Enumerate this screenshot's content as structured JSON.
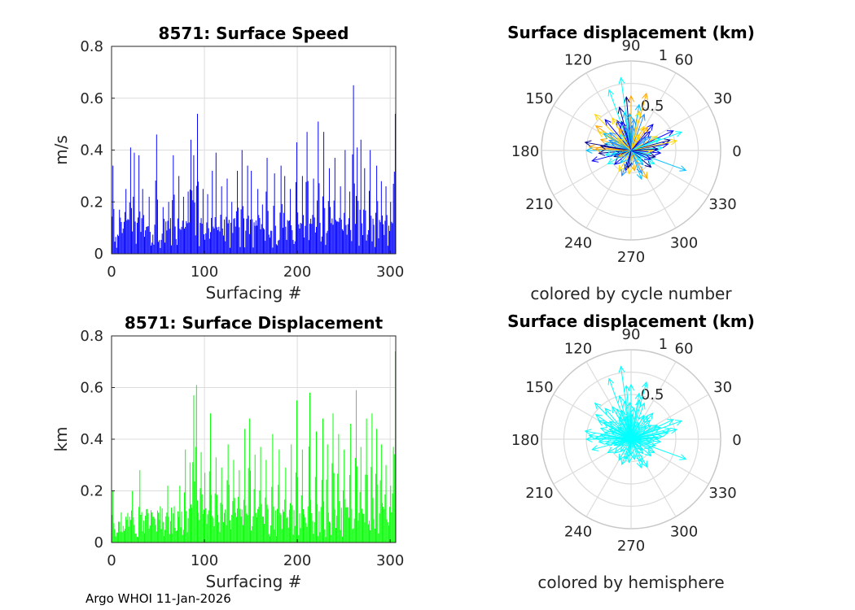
{
  "footer": "Argo WHOI 11-Jan-2026",
  "chart_data": [
    {
      "type": "bar",
      "title": "8571: Surface Speed",
      "xlabel": "Surfacing #",
      "ylabel": "m/s",
      "xlim": [
        0,
        306
      ],
      "ylim": [
        0,
        0.8
      ],
      "xticks": [
        "0",
        "100",
        "200",
        "300"
      ],
      "yticks": [
        "0",
        "0.2",
        "0.4",
        "0.6",
        "0.8"
      ],
      "color": "#0000ff",
      "peaks": [
        [
          1,
          0.34
        ],
        [
          8,
          0.17
        ],
        [
          15,
          0.25
        ],
        [
          20,
          0.41
        ],
        [
          24,
          0.39
        ],
        [
          29,
          0.38
        ],
        [
          33,
          0.25
        ],
        [
          40,
          0.22
        ],
        [
          48,
          0.46
        ],
        [
          55,
          0.18
        ],
        [
          61,
          0.2
        ],
        [
          66,
          0.38
        ],
        [
          72,
          0.3
        ],
        [
          77,
          0.22
        ],
        [
          82,
          0.24
        ],
        [
          85,
          0.44
        ],
        [
          88,
          0.38
        ],
        [
          92,
          0.54
        ],
        [
          98,
          0.25
        ],
        [
          103,
          0.23
        ],
        [
          108,
          0.32
        ],
        [
          112,
          0.39
        ],
        [
          118,
          0.26
        ],
        [
          124,
          0.29
        ],
        [
          129,
          0.2
        ],
        [
          135,
          0.32
        ],
        [
          140,
          0.4
        ],
        [
          146,
          0.34
        ],
        [
          150,
          0.32
        ],
        [
          157,
          0.25
        ],
        [
          162,
          0.19
        ],
        [
          167,
          0.37
        ],
        [
          175,
          0.31
        ],
        [
          182,
          0.34
        ],
        [
          186,
          0.3
        ],
        [
          192,
          0.25
        ],
        [
          199,
          0.43
        ],
        [
          205,
          0.3
        ],
        [
          210,
          0.47
        ],
        [
          217,
          0.29
        ],
        [
          222,
          0.51
        ],
        [
          228,
          0.47
        ],
        [
          234,
          0.33
        ],
        [
          240,
          0.37
        ],
        [
          246,
          0.26
        ],
        [
          251,
          0.4
        ],
        [
          256,
          0.24
        ],
        [
          260,
          0.65
        ],
        [
          264,
          0.41
        ],
        [
          268,
          0.44
        ],
        [
          272,
          0.33
        ],
        [
          278,
          0.4
        ],
        [
          285,
          0.34
        ],
        [
          290,
          0.28
        ],
        [
          295,
          0.26
        ],
        [
          300,
          0.2
        ],
        [
          303,
          0.27
        ],
        [
          305,
          0.54
        ]
      ]
    },
    {
      "type": "bar",
      "title": "8571: Surface Displacement",
      "xlabel": "Surfacing #",
      "ylabel": "km",
      "xlim": [
        0,
        306
      ],
      "ylim": [
        0,
        0.8
      ],
      "xticks": [
        "0",
        "100",
        "200",
        "300"
      ],
      "yticks": [
        "0",
        "0.2",
        "0.4",
        "0.6",
        "0.8"
      ],
      "color": "#00ff00",
      "peaks": [
        [
          1,
          0.2
        ],
        [
          8,
          0.08
        ],
        [
          15,
          0.1
        ],
        [
          22,
          0.2
        ],
        [
          30,
          0.28
        ],
        [
          38,
          0.13
        ],
        [
          45,
          0.1
        ],
        [
          52,
          0.14
        ],
        [
          60,
          0.22
        ],
        [
          67,
          0.14
        ],
        [
          73,
          0.22
        ],
        [
          79,
          0.36
        ],
        [
          84,
          0.31
        ],
        [
          88,
          0.57
        ],
        [
          91,
          0.61
        ],
        [
          96,
          0.35
        ],
        [
          100,
          0.27
        ],
        [
          106,
          0.5
        ],
        [
          112,
          0.33
        ],
        [
          118,
          0.29
        ],
        [
          125,
          0.38
        ],
        [
          131,
          0.32
        ],
        [
          137,
          0.28
        ],
        [
          143,
          0.44
        ],
        [
          148,
          0.48
        ],
        [
          154,
          0.34
        ],
        [
          160,
          0.37
        ],
        [
          166,
          0.32
        ],
        [
          173,
          0.42
        ],
        [
          180,
          0.36
        ],
        [
          187,
          0.29
        ],
        [
          193,
          0.38
        ],
        [
          199,
          0.55
        ],
        [
          205,
          0.36
        ],
        [
          213,
          0.58
        ],
        [
          220,
          0.43
        ],
        [
          227,
          0.48
        ],
        [
          232,
          0.38
        ],
        [
          238,
          0.5
        ],
        [
          244,
          0.42
        ],
        [
          250,
          0.36
        ],
        [
          257,
          0.46
        ],
        [
          263,
          0.59
        ],
        [
          268,
          0.37
        ],
        [
          274,
          0.48
        ],
        [
          280,
          0.5
        ],
        [
          285,
          0.44
        ],
        [
          290,
          0.38
        ],
        [
          295,
          0.3
        ],
        [
          300,
          0.22
        ],
        [
          303,
          0.37
        ],
        [
          305,
          0.74
        ]
      ]
    },
    {
      "type": "polar",
      "title": "Surface displacement (km)",
      "caption": "colored by cycle number",
      "rlim": [
        0,
        1
      ],
      "rticks": [
        "0.5",
        "1"
      ],
      "angle_ticks": [
        "0",
        "30",
        "60",
        "90",
        "120",
        "150",
        "180",
        "210",
        "240",
        "270",
        "300",
        "330"
      ],
      "colormap": [
        "#00008b",
        "#0000ff",
        "#1e90ff",
        "#00bfff",
        "#00ffff",
        "#ffd700",
        "#ffa500"
      ],
      "vectors": [
        [
          15,
          0.45
        ],
        [
          20,
          0.6
        ],
        [
          25,
          0.52
        ],
        [
          28,
          0.33
        ],
        [
          35,
          0.27
        ],
        [
          50,
          0.38
        ],
        [
          62,
          0.3
        ],
        [
          70,
          0.43
        ],
        [
          75,
          0.66
        ],
        [
          80,
          0.52
        ],
        [
          85,
          0.35
        ],
        [
          90,
          0.61
        ],
        [
          92,
          0.41
        ],
        [
          95,
          0.6
        ],
        [
          98,
          0.82
        ],
        [
          100,
          0.43
        ],
        [
          105,
          0.5
        ],
        [
          110,
          0.72
        ],
        [
          115,
          0.37
        ],
        [
          120,
          0.42
        ],
        [
          125,
          0.22
        ],
        [
          130,
          0.45
        ],
        [
          135,
          0.57
        ],
        [
          140,
          0.31
        ],
        [
          145,
          0.48
        ],
        [
          150,
          0.42
        ],
        [
          155,
          0.27
        ],
        [
          160,
          0.36
        ],
        [
          165,
          0.3
        ],
        [
          170,
          0.52
        ],
        [
          175,
          0.47
        ],
        [
          180,
          0.5
        ],
        [
          185,
          0.36
        ],
        [
          190,
          0.29
        ],
        [
          195,
          0.45
        ],
        [
          200,
          0.2
        ],
        [
          210,
          0.3
        ],
        [
          220,
          0.24
        ],
        [
          240,
          0.27
        ],
        [
          250,
          0.3
        ],
        [
          255,
          0.23
        ],
        [
          265,
          0.26
        ],
        [
          270,
          0.18
        ],
        [
          280,
          0.23
        ],
        [
          290,
          0.34
        ],
        [
          295,
          0.28
        ],
        [
          300,
          0.36
        ],
        [
          310,
          0.21
        ],
        [
          320,
          0.29
        ],
        [
          330,
          0.3
        ],
        [
          340,
          0.65
        ],
        [
          345,
          0.28
        ],
        [
          350,
          0.22
        ],
        [
          355,
          0.33
        ],
        [
          0,
          0.24
        ],
        [
          5,
          0.35
        ],
        [
          10,
          0.42
        ],
        [
          12,
          0.52
        ],
        [
          40,
          0.22
        ],
        [
          55,
          0.32
        ],
        [
          65,
          0.2
        ],
        [
          102,
          0.26
        ],
        [
          118,
          0.28
        ],
        [
          148,
          0.36
        ],
        [
          172,
          0.34
        ],
        [
          205,
          0.15
        ],
        [
          230,
          0.18
        ],
        [
          260,
          0.2
        ],
        [
          315,
          0.17
        ],
        [
          335,
          0.24
        ],
        [
          3,
          0.3
        ],
        [
          22,
          0.35
        ],
        [
          45,
          0.3
        ],
        [
          78,
          0.45
        ],
        [
          88,
          0.28
        ],
        [
          108,
          0.34
        ],
        [
          138,
          0.2
        ],
        [
          158,
          0.24
        ],
        [
          178,
          0.4
        ],
        [
          192,
          0.22
        ]
      ]
    },
    {
      "type": "polar",
      "title": "Surface displacement (km)",
      "caption": "colored by hemisphere",
      "rlim": [
        0,
        1
      ],
      "rticks": [
        "0.5",
        "1"
      ],
      "angle_ticks": [
        "0",
        "30",
        "60",
        "90",
        "120",
        "150",
        "180",
        "210",
        "240",
        "270",
        "300",
        "330"
      ],
      "colormap": [
        "#00ffff"
      ],
      "vectors": [
        [
          15,
          0.45
        ],
        [
          20,
          0.6
        ],
        [
          25,
          0.52
        ],
        [
          28,
          0.33
        ],
        [
          35,
          0.27
        ],
        [
          50,
          0.38
        ],
        [
          62,
          0.3
        ],
        [
          70,
          0.43
        ],
        [
          75,
          0.66
        ],
        [
          80,
          0.52
        ],
        [
          85,
          0.35
        ],
        [
          90,
          0.61
        ],
        [
          92,
          0.41
        ],
        [
          95,
          0.6
        ],
        [
          98,
          0.82
        ],
        [
          100,
          0.43
        ],
        [
          105,
          0.5
        ],
        [
          110,
          0.72
        ],
        [
          115,
          0.37
        ],
        [
          120,
          0.42
        ],
        [
          125,
          0.22
        ],
        [
          130,
          0.45
        ],
        [
          135,
          0.57
        ],
        [
          140,
          0.31
        ],
        [
          145,
          0.48
        ],
        [
          150,
          0.42
        ],
        [
          155,
          0.27
        ],
        [
          160,
          0.36
        ],
        [
          165,
          0.3
        ],
        [
          170,
          0.52
        ],
        [
          175,
          0.47
        ],
        [
          180,
          0.5
        ],
        [
          185,
          0.36
        ],
        [
          190,
          0.29
        ],
        [
          195,
          0.45
        ],
        [
          200,
          0.2
        ],
        [
          210,
          0.3
        ],
        [
          220,
          0.24
        ],
        [
          240,
          0.27
        ],
        [
          250,
          0.3
        ],
        [
          255,
          0.23
        ],
        [
          265,
          0.26
        ],
        [
          270,
          0.18
        ],
        [
          280,
          0.23
        ],
        [
          290,
          0.34
        ],
        [
          295,
          0.28
        ],
        [
          300,
          0.36
        ],
        [
          310,
          0.21
        ],
        [
          320,
          0.29
        ],
        [
          330,
          0.3
        ],
        [
          340,
          0.65
        ],
        [
          345,
          0.28
        ],
        [
          350,
          0.22
        ],
        [
          355,
          0.33
        ],
        [
          0,
          0.24
        ],
        [
          5,
          0.35
        ],
        [
          10,
          0.42
        ],
        [
          12,
          0.52
        ],
        [
          40,
          0.22
        ],
        [
          55,
          0.32
        ],
        [
          65,
          0.2
        ],
        [
          102,
          0.26
        ],
        [
          118,
          0.28
        ],
        [
          148,
          0.36
        ],
        [
          172,
          0.34
        ],
        [
          205,
          0.15
        ],
        [
          230,
          0.18
        ],
        [
          260,
          0.2
        ],
        [
          315,
          0.17
        ],
        [
          335,
          0.24
        ],
        [
          3,
          0.3
        ],
        [
          22,
          0.35
        ],
        [
          45,
          0.3
        ],
        [
          78,
          0.45
        ],
        [
          88,
          0.28
        ],
        [
          108,
          0.34
        ],
        [
          138,
          0.2
        ],
        [
          158,
          0.24
        ],
        [
          178,
          0.4
        ],
        [
          192,
          0.22
        ]
      ]
    }
  ]
}
